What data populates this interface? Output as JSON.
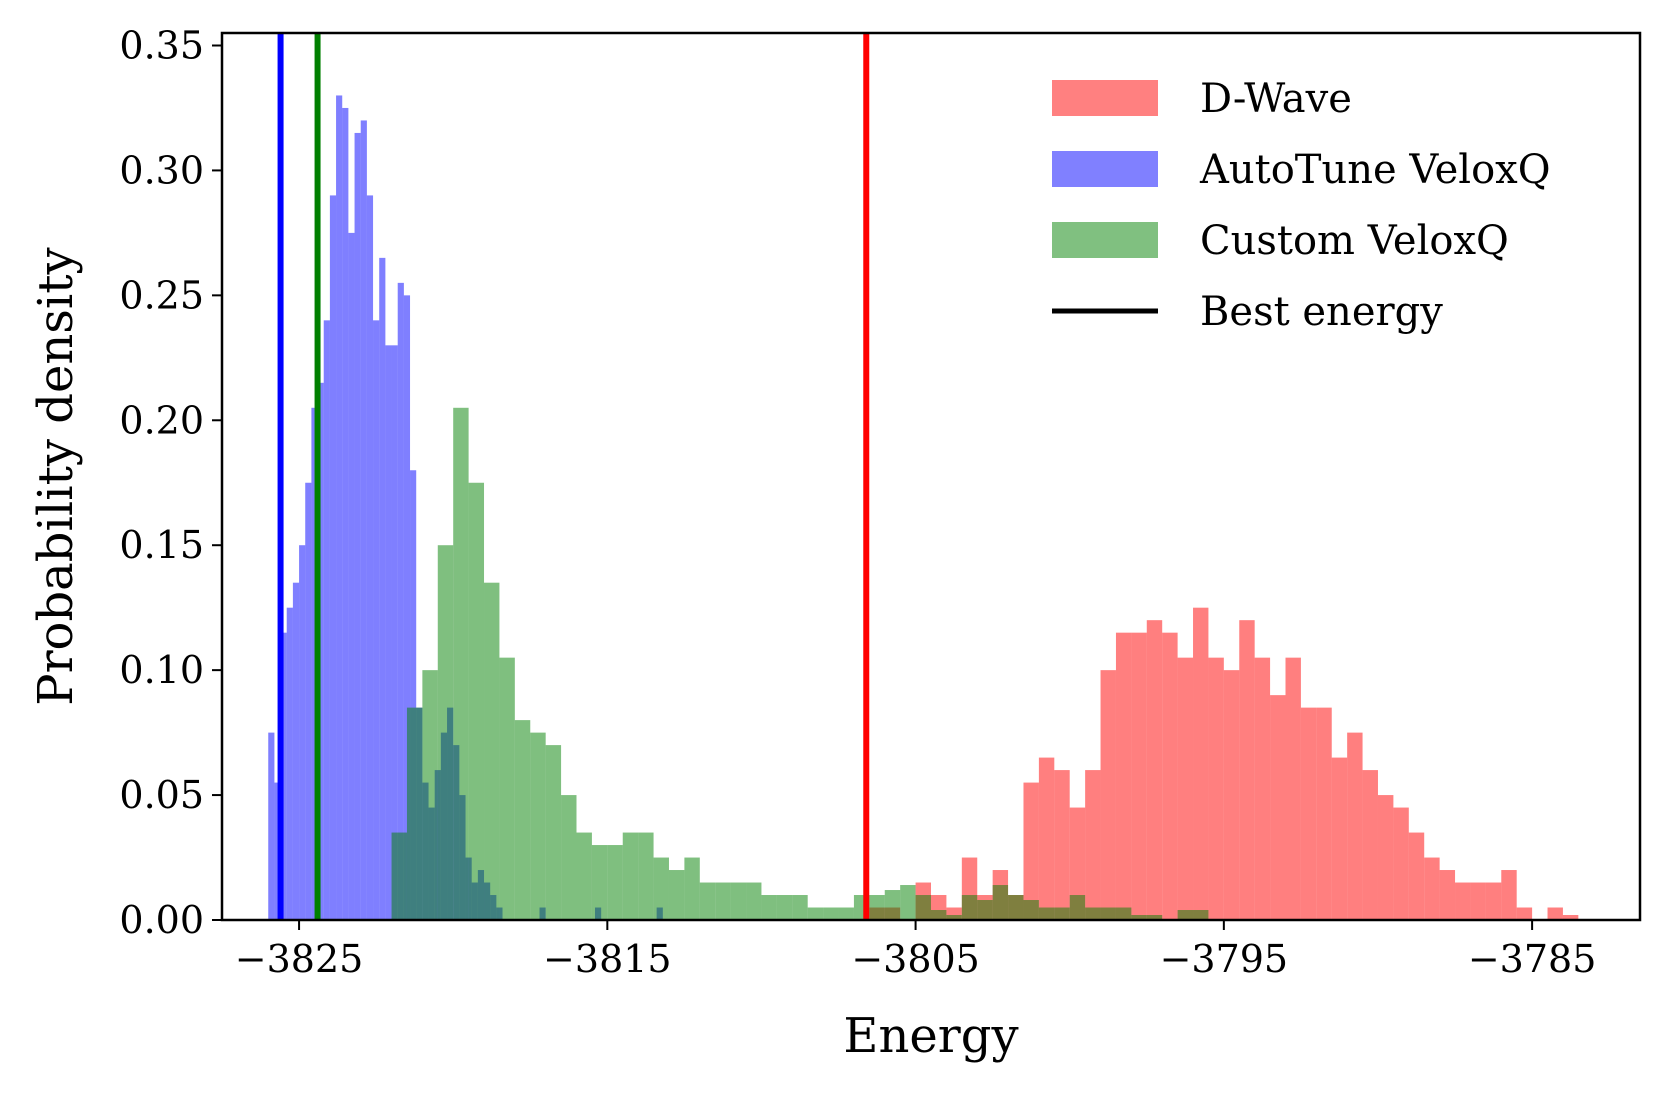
{
  "chart_data": {
    "type": "histogram",
    "title": "",
    "xlabel": "Energy",
    "ylabel": "Probability density",
    "xlim": [
      -3827.5,
      -3781.5
    ],
    "ylim": [
      0,
      0.355
    ],
    "x_ticks": [
      {
        "value": -3825,
        "label": "−3825"
      },
      {
        "value": -3815,
        "label": "−3815"
      },
      {
        "value": -3805,
        "label": "−3805"
      },
      {
        "value": -3795,
        "label": "−3795"
      },
      {
        "value": -3785,
        "label": "−3785"
      }
    ],
    "y_ticks": [
      {
        "value": 0.0,
        "label": "0.00"
      },
      {
        "value": 0.05,
        "label": "0.05"
      },
      {
        "value": 0.1,
        "label": "0.10"
      },
      {
        "value": 0.15,
        "label": "0.15"
      },
      {
        "value": 0.2,
        "label": "0.20"
      },
      {
        "value": 0.25,
        "label": "0.25"
      },
      {
        "value": 0.3,
        "label": "0.30"
      },
      {
        "value": 0.35,
        "label": "0.35"
      }
    ],
    "grid": false,
    "legend_position": "top-right",
    "series": [
      {
        "name": "D-Wave",
        "kind": "hist",
        "color": "#ff0000",
        "alpha": 0.5,
        "bin_start": -3807.0,
        "bin_width": 0.5,
        "values": [
          0.0,
          0.005,
          0.005,
          0.0,
          0.015,
          0.01,
          0.005,
          0.025,
          0.01,
          0.02,
          0.01,
          0.055,
          0.065,
          0.06,
          0.045,
          0.06,
          0.1,
          0.115,
          0.115,
          0.12,
          0.115,
          0.105,
          0.125,
          0.105,
          0.1,
          0.12,
          0.105,
          0.09,
          0.105,
          0.085,
          0.085,
          0.065,
          0.075,
          0.06,
          0.05,
          0.045,
          0.035,
          0.025,
          0.02,
          0.015,
          0.015,
          0.015,
          0.02,
          0.005,
          0.0,
          0.005,
          0.002,
          0.0,
          0.0,
          0.0,
          0.0,
          0.0,
          0.0,
          0.0,
          0.0,
          0.0,
          0.0,
          0.002
        ]
      },
      {
        "name": "AutoTune VeloxQ",
        "kind": "hist",
        "color": "#0000ff",
        "alpha": 0.5,
        "bin_start": -3826.0,
        "bin_width": 0.2,
        "values": [
          0.075,
          0.055,
          0.115,
          0.125,
          0.135,
          0.15,
          0.175,
          0.205,
          0.215,
          0.24,
          0.29,
          0.33,
          0.325,
          0.275,
          0.315,
          0.32,
          0.29,
          0.24,
          0.265,
          0.23,
          0.23,
          0.255,
          0.25,
          0.18,
          0.085,
          0.055,
          0.045,
          0.06,
          0.075,
          0.085,
          0.07,
          0.05,
          0.025,
          0.015,
          0.02,
          0.015,
          0.01,
          0.005,
          0.0,
          0.0,
          0.0,
          0.0,
          0.0,
          0.0,
          0.005,
          0.0,
          0.0,
          0.0,
          0.0,
          0.0,
          0.0,
          0.0,
          0.0,
          0.005,
          0.0,
          0.0,
          0.0,
          0.0,
          0.0,
          0.0,
          0.0,
          0.0,
          0.0,
          0.005
        ]
      },
      {
        "name": "Custom VeloxQ",
        "kind": "hist",
        "color": "#008000",
        "alpha": 0.5,
        "bin_start": -3822.0,
        "bin_width": 0.5,
        "values": [
          0.035,
          0.085,
          0.1,
          0.15,
          0.205,
          0.175,
          0.135,
          0.105,
          0.08,
          0.075,
          0.07,
          0.05,
          0.035,
          0.03,
          0.03,
          0.035,
          0.035,
          0.025,
          0.02,
          0.025,
          0.015,
          0.015,
          0.015,
          0.015,
          0.01,
          0.01,
          0.01,
          0.005,
          0.005,
          0.005,
          0.01,
          0.01,
          0.012,
          0.014,
          0.01,
          0.004,
          0.002,
          0.01,
          0.008,
          0.014,
          0.01,
          0.008,
          0.005,
          0.005,
          0.01,
          0.005,
          0.005,
          0.005,
          0.002,
          0.002,
          0.0,
          0.004,
          0.004,
          0.0,
          0.0,
          0.0,
          0.0,
          0.0
        ]
      }
    ],
    "best_energy": {
      "legend_label": "Best energy",
      "lines": [
        {
          "series": "AutoTune VeloxQ",
          "x": -3825.6,
          "color": "#0000ff"
        },
        {
          "series": "Custom VeloxQ",
          "x": -3824.4,
          "color": "#008000"
        },
        {
          "series": "D-Wave",
          "x": -3806.6,
          "color": "#ff0000"
        }
      ]
    },
    "legend": [
      {
        "label": "D-Wave",
        "swatch": "patch",
        "color": "#ff8080"
      },
      {
        "label": "AutoTune VeloxQ",
        "swatch": "patch",
        "color": "#8080ff"
      },
      {
        "label": "Custom VeloxQ",
        "swatch": "patch",
        "color": "#80c080"
      },
      {
        "label": "Best energy",
        "swatch": "line",
        "color": "#000000"
      }
    ]
  }
}
